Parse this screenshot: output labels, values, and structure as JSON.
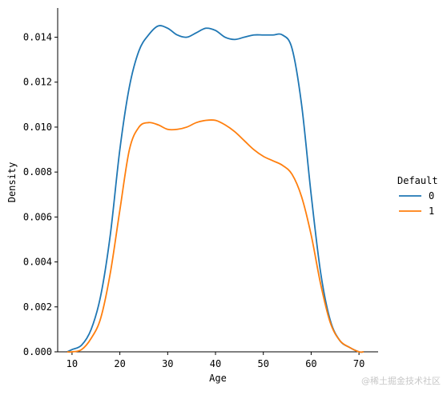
{
  "chart_data": {
    "type": "line",
    "xlabel": "Age",
    "ylabel": "Density",
    "xlim": [
      7,
      74
    ],
    "ylim": [
      0,
      0.0153
    ],
    "xticks": [
      10,
      20,
      30,
      40,
      50,
      60,
      70
    ],
    "yticks": [
      "0.000",
      "0.002",
      "0.004",
      "0.006",
      "0.008",
      "0.010",
      "0.012",
      "0.014"
    ],
    "legend": {
      "title": "Default",
      "placement": "right"
    },
    "grid": false,
    "series": [
      {
        "name": "0",
        "color": "#1f77b4",
        "x": [
          9,
          10,
          12,
          14,
          16,
          18,
          20,
          22,
          24,
          26,
          28,
          30,
          32,
          34,
          36,
          38,
          40,
          42,
          44,
          46,
          48,
          50,
          52,
          54,
          56,
          58,
          60,
          62,
          64,
          66,
          68,
          70,
          71
        ],
        "y": [
          0.0,
          0.0001,
          0.0003,
          0.001,
          0.0025,
          0.0052,
          0.009,
          0.0118,
          0.0134,
          0.0141,
          0.0145,
          0.0144,
          0.0141,
          0.014,
          0.0142,
          0.0144,
          0.0143,
          0.014,
          0.0139,
          0.014,
          0.0141,
          0.0141,
          0.0141,
          0.0141,
          0.0135,
          0.011,
          0.007,
          0.0035,
          0.0014,
          0.0005,
          0.0002,
          0.0,
          0.0
        ]
      },
      {
        "name": "1",
        "color": "#ff7f0e",
        "x": [
          9,
          10,
          12,
          14,
          16,
          18,
          20,
          22,
          24,
          26,
          28,
          30,
          32,
          34,
          36,
          38,
          40,
          42,
          44,
          46,
          48,
          50,
          52,
          54,
          56,
          58,
          60,
          62,
          64,
          66,
          68,
          70,
          71
        ],
        "y": [
          0.0,
          0.0,
          0.0001,
          0.0006,
          0.0015,
          0.0035,
          0.0063,
          0.009,
          0.01,
          0.0102,
          0.0101,
          0.0099,
          0.0099,
          0.01,
          0.0102,
          0.0103,
          0.0103,
          0.0101,
          0.0098,
          0.0094,
          0.009,
          0.0087,
          0.0085,
          0.0083,
          0.0079,
          0.0069,
          0.0052,
          0.003,
          0.0013,
          0.0005,
          0.0002,
          0.0,
          0.0
        ]
      }
    ]
  },
  "watermark": "@稀土掘金技术社区"
}
